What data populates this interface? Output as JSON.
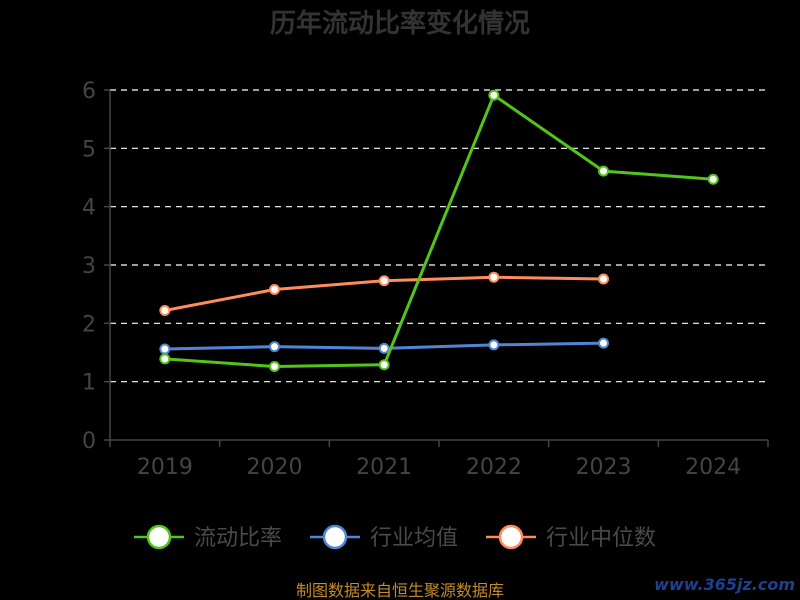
{
  "chart_data": {
    "type": "line",
    "title": "历年流动比率变化情况",
    "categories": [
      "2019",
      "2020",
      "2021",
      "2022",
      "2023",
      "2024"
    ],
    "yticks": [
      "0",
      "1",
      "2",
      "3",
      "4",
      "5",
      "6"
    ],
    "ylim": [
      0,
      6
    ],
    "grid": true,
    "legend_position": "bottom",
    "series": [
      {
        "name": "流动比率",
        "color": "#52c41a",
        "values": [
          1.39,
          1.26,
          1.29,
          5.91,
          4.61,
          4.47
        ]
      },
      {
        "name": "行业均值",
        "color": "#4f86d9",
        "values": [
          1.56,
          1.6,
          1.57,
          1.63,
          1.66,
          null
        ]
      },
      {
        "name": "行业中位数",
        "color": "#ff8c5a",
        "values": [
          2.22,
          2.58,
          2.73,
          2.79,
          2.76,
          null
        ]
      }
    ]
  },
  "footer": {
    "source": "制图数据来自恒生聚源数据库",
    "watermark": "www.365jz.com"
  }
}
